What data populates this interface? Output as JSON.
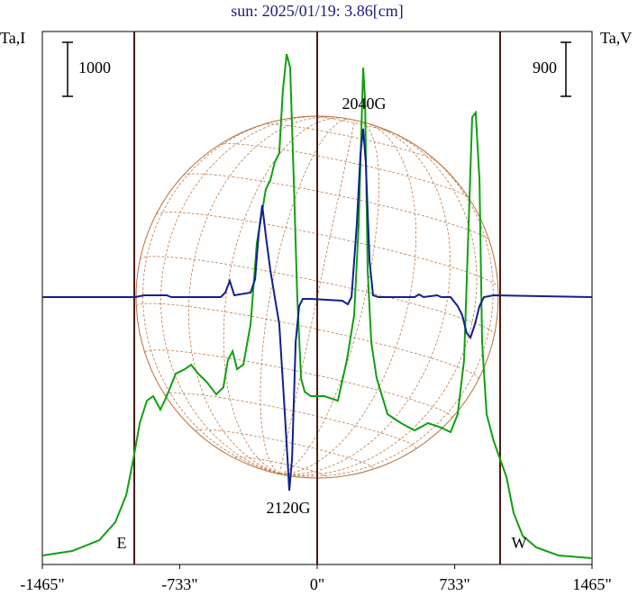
{
  "chart_data": {
    "type": "line",
    "title": "sun: 2025/01/19: 3.86[cm]",
    "ylabel": "Ta,I",
    "y2label": "Ta,V",
    "y_scale_bar": 1000,
    "y2_scale_bar": 900,
    "xlim": [
      -1465,
      1465
    ],
    "xticks": [
      {
        "value": -1465,
        "label": "-1465\""
      },
      {
        "value": -733,
        "label": "-733\""
      },
      {
        "value": 0,
        "label": "0\""
      },
      {
        "value": 733,
        "label": "733\""
      },
      {
        "value": 1465,
        "label": "1465\""
      }
    ],
    "ylim": [
      0,
      9870
    ],
    "y2lim": [
      -4455,
      4425
    ],
    "vlines": [
      -975,
      0,
      975
    ],
    "annotations": [
      "2040G",
      "2120G",
      "E",
      "W"
    ],
    "series": [
      {
        "color": "#10a010",
        "x": [
          -1465,
          -1306,
          -1162,
          -1076,
          -1018,
          -980,
          -946,
          -908,
          -874,
          -836,
          -802,
          -754,
          -706,
          -672,
          -634,
          -586,
          -538,
          -500,
          -476,
          -451,
          -427,
          -394,
          -355,
          -322,
          -298,
          -274,
          -250,
          -226,
          -202,
          -183,
          -163,
          -144,
          -125,
          -106,
          -86,
          -67,
          -34,
          38,
          110,
          158,
          197,
          221,
          235,
          245,
          255,
          269,
          288,
          317,
          375,
          447,
          519,
          591,
          663,
          711,
          749,
          783,
          807,
          826,
          845,
          865,
          879,
          903,
          941,
          975,
          1009,
          1047,
          1095,
          1167,
          1287,
          1465
        ],
        "values": [
          167,
          250,
          450,
          783,
          1283,
          1950,
          2617,
          3033,
          3117,
          2867,
          3117,
          3533,
          3617,
          3700,
          3533,
          3367,
          3150,
          3283,
          3783,
          3950,
          3617,
          3700,
          4450,
          5950,
          6450,
          6950,
          7117,
          7450,
          7617,
          8783,
          9450,
          9200,
          7117,
          4950,
          3450,
          3200,
          3117,
          3117,
          3033,
          3783,
          4617,
          6283,
          7950,
          9200,
          8617,
          5450,
          4117,
          3450,
          2783,
          2617,
          2483,
          2617,
          2533,
          2450,
          2783,
          3783,
          6283,
          8283,
          8367,
          7117,
          4117,
          2783,
          2283,
          1950,
          1617,
          950,
          533,
          317,
          167,
          117
        ]
      },
      {
        "color": "#102090",
        "axis": "y2",
        "x": [
          -1465,
          -970,
          -922,
          -802,
          -778,
          -514,
          -490,
          -466,
          -442,
          -355,
          -331,
          -312,
          -293,
          -274,
          -250,
          -226,
          -202,
          -178,
          -158,
          -149,
          -134,
          -115,
          -96,
          -77,
          -34,
          134,
          163,
          183,
          211,
          231,
          245,
          259,
          279,
          298,
          327,
          519,
          543,
          567,
          639,
          663,
          711,
          749,
          773,
          797,
          817,
          841,
          865,
          889,
          941,
          1465
        ],
        "values": [
          0,
          0,
          30,
          30,
          0,
          0,
          75,
          270,
          30,
          75,
          300,
          1050,
          1530,
          1020,
          450,
          0,
          -450,
          -1650,
          -2700,
          -3225,
          -2700,
          -750,
          -150,
          -30,
          -30,
          -60,
          -120,
          0,
          1200,
          2400,
          2805,
          2250,
          600,
          30,
          0,
          0,
          45,
          0,
          30,
          0,
          0,
          -150,
          -300,
          -600,
          -675,
          -450,
          -150,
          0,
          30,
          0
        ]
      }
    ]
  }
}
